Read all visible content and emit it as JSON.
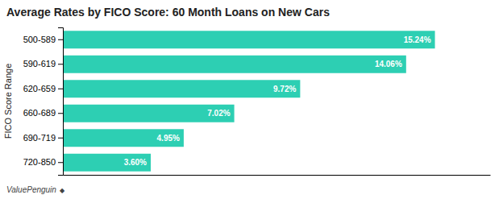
{
  "chart_data": {
    "type": "bar",
    "orientation": "horizontal",
    "title": "Average Rates by FICO Score: 60 Month Loans on New Cars",
    "ylabel": "FICO Score Range",
    "categories": [
      "500-589",
      "590-619",
      "620-659",
      "660-689",
      "690-719",
      "720-850"
    ],
    "values": [
      15.24,
      14.06,
      9.72,
      7.02,
      4.95,
      3.6
    ],
    "value_labels": [
      "15.24%",
      "14.06%",
      "9.72%",
      "7.02%",
      "4.95%",
      "3.60%"
    ],
    "data_labels": true,
    "color": "#2dcfb3",
    "xlim": [
      0,
      17.5
    ],
    "tick_labels": "y",
    "grid": false,
    "annotations": [
      "ValuePenguin",
      "◆"
    ]
  }
}
